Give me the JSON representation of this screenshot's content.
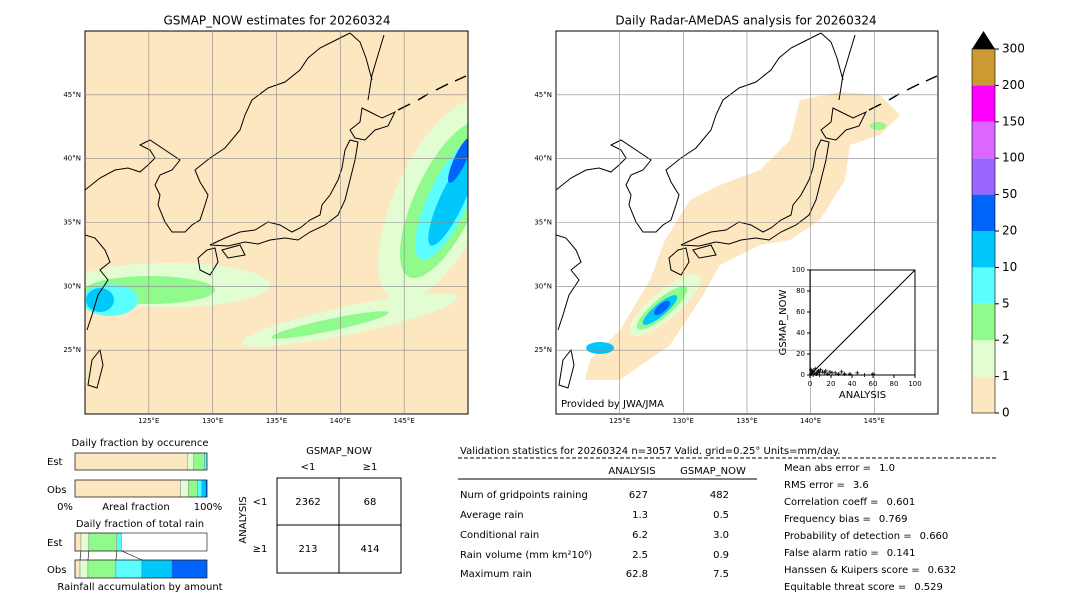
{
  "maps": [
    {
      "title": "GSMAP_NOW estimates for 20260324"
    },
    {
      "title": "Daily Radar-AMeDAS analysis for 20260324",
      "credit": "Provided by JWA/JMA"
    }
  ],
  "map_axes": {
    "xlim": [
      120,
      150
    ],
    "ylim": [
      20,
      50
    ],
    "xticks": [
      {
        "value": 125,
        "label": "125°E"
      },
      {
        "value": 130,
        "label": "130°E"
      },
      {
        "value": 135,
        "label": "135°E"
      },
      {
        "value": 140,
        "label": "140°E"
      },
      {
        "value": 145,
        "label": "145°E"
      }
    ],
    "yticks": [
      {
        "value": 25,
        "label": "25°N"
      },
      {
        "value": 30,
        "label": "30°N"
      },
      {
        "value": 35,
        "label": "35°N"
      },
      {
        "value": 40,
        "label": "40°N"
      },
      {
        "value": 45,
        "label": "45°N"
      }
    ]
  },
  "colorbar": {
    "ticks": [
      0,
      1,
      2,
      5,
      10,
      20,
      50,
      100,
      150,
      200,
      300
    ],
    "colors": [
      "#fde7c0",
      "#e3fdd2",
      "#90fa8c",
      "#5cfdfd",
      "#00c8fb",
      "#0064fb",
      "#9966ff",
      "#dd66ff",
      "#ff00ff",
      "#cc9933"
    ],
    "extend_color": "#000000"
  },
  "scatter": {
    "xlabel": "ANALYSIS",
    "ylabel": "GSMAP_NOW",
    "xlim": [
      0,
      100
    ],
    "ylim": [
      0,
      100
    ],
    "xticks": [
      0,
      20,
      40,
      60,
      80,
      100
    ],
    "yticks": [
      0,
      20,
      40,
      60,
      80,
      100
    ],
    "x": [
      1,
      2,
      3,
      4,
      5,
      6,
      7,
      8,
      9,
      10,
      12,
      14,
      15,
      17,
      19,
      21,
      24,
      27,
      30,
      33,
      38,
      45,
      52,
      60,
      1,
      3,
      6,
      9
    ],
    "y": [
      5,
      3,
      4,
      2,
      6,
      1,
      3,
      4,
      2,
      5,
      3,
      2,
      4,
      1,
      3,
      2,
      2,
      1,
      3,
      1,
      1,
      2,
      0,
      1,
      1,
      0,
      1,
      0
    ]
  },
  "occurrence": {
    "title": "Daily fraction by occurence",
    "rows": [
      "Est",
      "Obs"
    ],
    "xlabels": [
      "0%",
      "Areal fraction",
      "100%"
    ],
    "fractions": [
      [
        85,
        5,
        8,
        2
      ],
      [
        80,
        6,
        7,
        3,
        3,
        1
      ]
    ]
  },
  "accumulation": {
    "title": "Daily fraction of total rain",
    "footer": "Rainfall accumulation by amount",
    "rows": [
      "Est",
      "Obs"
    ],
    "fractions": [
      [
        4.5,
        6,
        21.2,
        3.8
      ],
      [
        3.8,
        6,
        21.2,
        19.7,
        22.7,
        26.5
      ]
    ]
  },
  "contingency": {
    "title": "GSMAP_NOW",
    "ylabel": "ANALYSIS",
    "cols": [
      "<1",
      "≥1"
    ],
    "rows": [
      "<1",
      "≥1"
    ],
    "cells": [
      [
        2362,
        68
      ],
      [
        213,
        414
      ]
    ]
  },
  "validation": {
    "header": "Validation statistics for 20260324  n=3057 Valid. grid=0.25° Units=mm/day.",
    "columns": [
      "ANALYSIS",
      "GSMAP_NOW"
    ],
    "rows": [
      [
        "Num of gridpoints raining",
        "627",
        "482"
      ],
      [
        "Average rain",
        "1.3",
        "0.5"
      ],
      [
        "Conditional rain",
        "6.2",
        "3.0"
      ],
      [
        "Rain volume (mm km²10⁶)",
        "2.5",
        "0.9"
      ],
      [
        "Maximum rain",
        "62.8",
        "7.5"
      ]
    ],
    "scores": [
      [
        "Mean abs error =",
        "1.0"
      ],
      [
        "RMS error =",
        "3.6"
      ],
      [
        "Correlation coeff =",
        "0.601"
      ],
      [
        "Frequency bias =",
        "0.769"
      ],
      [
        "Probability of detection =",
        "0.660"
      ],
      [
        "False alarm ratio =",
        "0.141"
      ],
      [
        "Hanssen & Kuipers score =",
        "0.632"
      ],
      [
        "Equitable threat score =",
        "0.529"
      ]
    ]
  }
}
